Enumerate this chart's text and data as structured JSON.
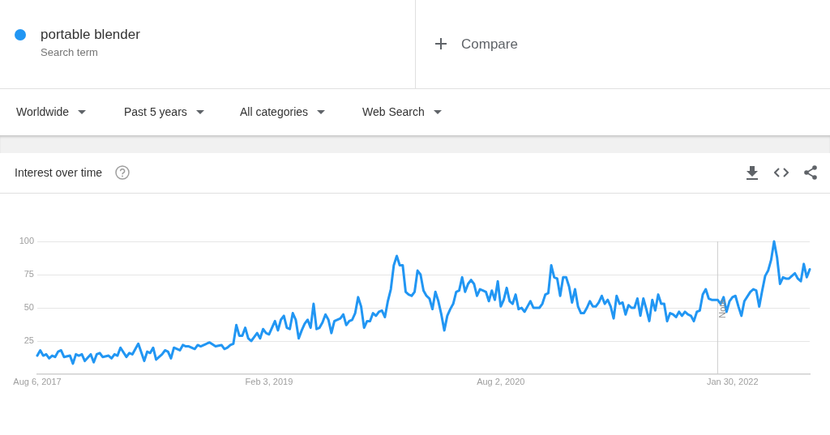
{
  "chart_data": {
    "type": "line",
    "title": "Interest over time",
    "legend": "top left",
    "grid": "y",
    "line_style": "solid",
    "annotations": [
      "Search term",
      "Compare",
      "Worldwide",
      "Past 5 years",
      "All categories",
      "Web Search"
    ],
    "xlim": [
      "2017-08-06",
      "2022-07-31"
    ],
    "xticks": [
      {
        "value": "2017-08-06",
        "label": "Aug 6, 2017"
      },
      {
        "value": "2019-02-03",
        "label": "Feb 3, 2019"
      },
      {
        "value": "2020-08-02",
        "label": "Aug 2, 2020"
      },
      {
        "value": "2022-01-30",
        "label": "Jan 30, 2022"
      }
    ],
    "ylim": [
      0,
      100
    ],
    "yticks": [
      25,
      50,
      75,
      100
    ],
    "ref_lines": [
      {
        "axis": "x",
        "value": "2021-12-26",
        "label": "Note",
        "color": "#cccccc"
      }
    ],
    "x": [
      "2017-08-06",
      "2017-08-13",
      "2017-08-20",
      "2017-08-27",
      "2017-09-03",
      "2017-09-10",
      "2017-09-17",
      "2017-09-24",
      "2017-10-01",
      "2017-10-08",
      "2017-10-22",
      "2017-10-29",
      "2017-11-05",
      "2017-11-12",
      "2017-11-19",
      "2017-11-26",
      "2017-12-10",
      "2017-12-17",
      "2017-12-24",
      "2017-12-31",
      "2018-01-07",
      "2018-01-21",
      "2018-01-28",
      "2018-02-04",
      "2018-02-11",
      "2018-02-18",
      "2018-03-04",
      "2018-03-11",
      "2018-03-18",
      "2018-04-01",
      "2018-04-15",
      "2018-04-22",
      "2018-04-29",
      "2018-05-06",
      "2018-05-13",
      "2018-05-27",
      "2018-06-03",
      "2018-06-10",
      "2018-06-17",
      "2018-06-24",
      "2018-07-08",
      "2018-07-15",
      "2018-07-22",
      "2018-07-29",
      "2018-08-12",
      "2018-08-19",
      "2018-08-26",
      "2018-09-16",
      "2018-09-30",
      "2018-10-14",
      "2018-10-21",
      "2018-10-28",
      "2018-11-04",
      "2018-11-11",
      "2018-11-18",
      "2018-11-25",
      "2018-12-02",
      "2018-12-09",
      "2018-12-16",
      "2018-12-23",
      "2018-12-30",
      "2019-01-06",
      "2019-01-13",
      "2019-01-20",
      "2019-01-27",
      "2019-02-03",
      "2019-02-17",
      "2019-02-24",
      "2019-03-03",
      "2019-03-10",
      "2019-03-17",
      "2019-03-24",
      "2019-03-31",
      "2019-04-07",
      "2019-04-14",
      "2019-04-21",
      "2019-04-28",
      "2019-05-05",
      "2019-05-12",
      "2019-05-19",
      "2019-05-26",
      "2019-06-02",
      "2019-06-09",
      "2019-06-16",
      "2019-06-23",
      "2019-06-30",
      "2019-07-07",
      "2019-07-21",
      "2019-07-28",
      "2019-08-04",
      "2019-08-11",
      "2019-08-18",
      "2019-08-25",
      "2019-09-01",
      "2019-09-08",
      "2019-09-15",
      "2019-09-22",
      "2019-09-29",
      "2019-10-06",
      "2019-10-13",
      "2019-10-20",
      "2019-10-27",
      "2019-11-03",
      "2019-11-10",
      "2019-11-17",
      "2019-11-24",
      "2019-12-01",
      "2019-12-08",
      "2019-12-15",
      "2019-12-22",
      "2019-12-29",
      "2020-01-05",
      "2020-01-12",
      "2020-01-19",
      "2020-01-26",
      "2020-02-02",
      "2020-02-09",
      "2020-02-16",
      "2020-02-23",
      "2020-03-01",
      "2020-03-08",
      "2020-03-15",
      "2020-03-22",
      "2020-03-29",
      "2020-04-05",
      "2020-04-12",
      "2020-04-19",
      "2020-04-26",
      "2020-05-03",
      "2020-05-10",
      "2020-05-17",
      "2020-05-24",
      "2020-05-31",
      "2020-06-07",
      "2020-06-14",
      "2020-06-21",
      "2020-06-28",
      "2020-07-05",
      "2020-07-12",
      "2020-07-19",
      "2020-07-26",
      "2020-08-02",
      "2020-08-09",
      "2020-08-16",
      "2020-08-23",
      "2020-08-30",
      "2020-09-06",
      "2020-09-13",
      "2020-09-20",
      "2020-09-27",
      "2020-10-04",
      "2020-10-11",
      "2020-10-18",
      "2020-11-01",
      "2020-11-08",
      "2020-11-15",
      "2020-11-22",
      "2020-11-29",
      "2020-12-06",
      "2020-12-13",
      "2020-12-20",
      "2020-12-27",
      "2021-01-03",
      "2021-01-10",
      "2021-01-17",
      "2021-01-24",
      "2021-01-31",
      "2021-02-07",
      "2021-02-14",
      "2021-02-21",
      "2021-02-28",
      "2021-03-07",
      "2021-03-14",
      "2021-03-21",
      "2021-03-28",
      "2021-04-04",
      "2021-04-11",
      "2021-04-18",
      "2021-04-25",
      "2021-05-02",
      "2021-05-09",
      "2021-05-16",
      "2021-05-23",
      "2021-05-30",
      "2021-06-06",
      "2021-06-13",
      "2021-06-20",
      "2021-06-27",
      "2021-07-04",
      "2021-07-11",
      "2021-07-18",
      "2021-07-25",
      "2021-08-01",
      "2021-08-08",
      "2021-08-15",
      "2021-08-22",
      "2021-08-29",
      "2021-09-05",
      "2021-09-12",
      "2021-09-19",
      "2021-09-26",
      "2021-10-03",
      "2021-10-10",
      "2021-10-17",
      "2021-10-24",
      "2021-10-31",
      "2021-11-07",
      "2021-11-14",
      "2021-11-21",
      "2021-11-28",
      "2021-12-05",
      "2021-12-12",
      "2021-12-26",
      "2022-01-02",
      "2022-01-09",
      "2022-01-16",
      "2022-01-23",
      "2022-01-30",
      "2022-02-06",
      "2022-02-13",
      "2022-02-20",
      "2022-02-27",
      "2022-03-13",
      "2022-03-20",
      "2022-03-27",
      "2022-04-03",
      "2022-04-10",
      "2022-04-17",
      "2022-04-24",
      "2022-05-01",
      "2022-05-08",
      "2022-05-15",
      "2022-05-22",
      "2022-05-29",
      "2022-06-05",
      "2022-06-12",
      "2022-06-26",
      "2022-07-03",
      "2022-07-10",
      "2022-07-17",
      "2022-07-24",
      "2022-07-31"
    ],
    "series": [
      {
        "name": "portable blender",
        "color": "#2196f3",
        "values": [
          14,
          18,
          14,
          15,
          12,
          14,
          13,
          17,
          18,
          13,
          14,
          8,
          15,
          14,
          15,
          10,
          15,
          9,
          15,
          16,
          13,
          14,
          12,
          15,
          14,
          20,
          13,
          16,
          15,
          23,
          10,
          17,
          16,
          20,
          11,
          15,
          18,
          17,
          12,
          20,
          18,
          22,
          21,
          21,
          19,
          22,
          21,
          24,
          21,
          22,
          19,
          20,
          22,
          23,
          37,
          29,
          29,
          35,
          27,
          25,
          28,
          31,
          27,
          34,
          31,
          30,
          40,
          33,
          41,
          44,
          35,
          34,
          46,
          41,
          27,
          33,
          38,
          41,
          35,
          53,
          34,
          35,
          39,
          45,
          41,
          31,
          40,
          42,
          45,
          37,
          40,
          41,
          46,
          58,
          51,
          35,
          40,
          40,
          46,
          44,
          47,
          48,
          43,
          55,
          64,
          82,
          89,
          82,
          82,
          62,
          60,
          59,
          62,
          78,
          75,
          63,
          59,
          57,
          49,
          62,
          55,
          45,
          33,
          44,
          49,
          53,
          62,
          63,
          73,
          62,
          68,
          71,
          68,
          59,
          64,
          63,
          62,
          55,
          63,
          56,
          70,
          51,
          56,
          65,
          55,
          53,
          60,
          49,
          50,
          47,
          51,
          55,
          50,
          50,
          53,
          60,
          61,
          82,
          73,
          72,
          59,
          73,
          73,
          66,
          54,
          64,
          51,
          46,
          46,
          50,
          55,
          51,
          51,
          54,
          59,
          53,
          56,
          51,
          42,
          59,
          53,
          54,
          45,
          52,
          50,
          50,
          57,
          44,
          57,
          49,
          40,
          56,
          48,
          60,
          53,
          53,
          40,
          46,
          45,
          43,
          47,
          44,
          47,
          45,
          44,
          40,
          47,
          48,
          60,
          64,
          57,
          56,
          56,
          53,
          58,
          47,
          55,
          58,
          59,
          51,
          44,
          55,
          62,
          64,
          63,
          51,
          63,
          74,
          78,
          86,
          100,
          88,
          68,
          73,
          72,
          72,
          76,
          72,
          70,
          83,
          73,
          79
        ]
      }
    ]
  }
}
